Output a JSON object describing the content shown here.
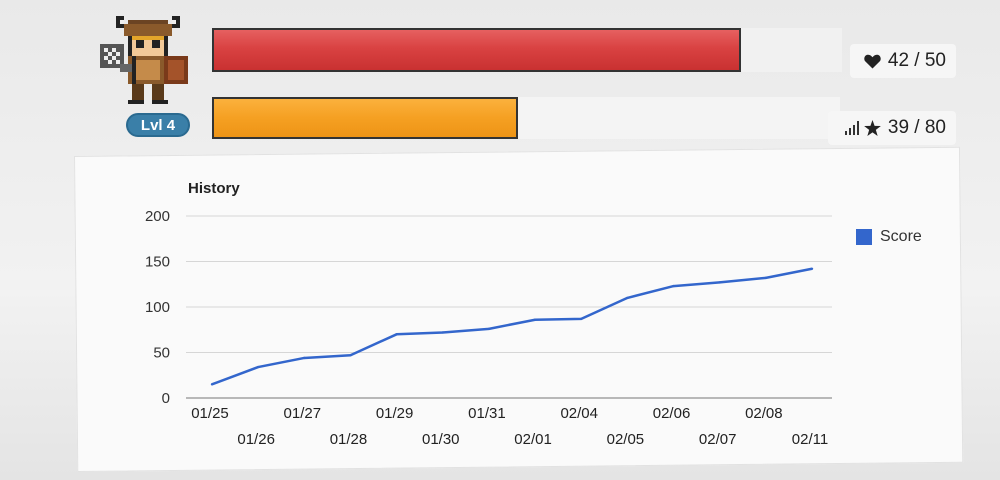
{
  "player": {
    "level_label": "Lvl 4",
    "avatar_icon": "pixel-warrior-avatar"
  },
  "health": {
    "value": 42,
    "max": 50,
    "text": "42 / 50",
    "icon": "heart-icon",
    "color": "#d94242"
  },
  "experience": {
    "value": 39,
    "max": 80,
    "text": "39 / 80",
    "icons": [
      "signal-bars-icon",
      "star-icon"
    ],
    "color": "#f5a022"
  },
  "chart_data": {
    "type": "line",
    "title": "History",
    "x": [
      "01/25",
      "01/26",
      "01/27",
      "01/28",
      "01/29",
      "01/30",
      "01/31",
      "02/01",
      "02/04",
      "02/05",
      "02/06",
      "02/07",
      "02/08",
      "02/11"
    ],
    "series": [
      {
        "name": "Score",
        "color": "#3366cc",
        "values": [
          15,
          34,
          44,
          47,
          70,
          72,
          76,
          86,
          87,
          110,
          123,
          127,
          132,
          142
        ]
      }
    ],
    "yticks": [
      "0",
      "50",
      "100",
      "150",
      "200"
    ],
    "ylim": [
      0,
      200
    ],
    "grid": true,
    "legend": "right"
  }
}
